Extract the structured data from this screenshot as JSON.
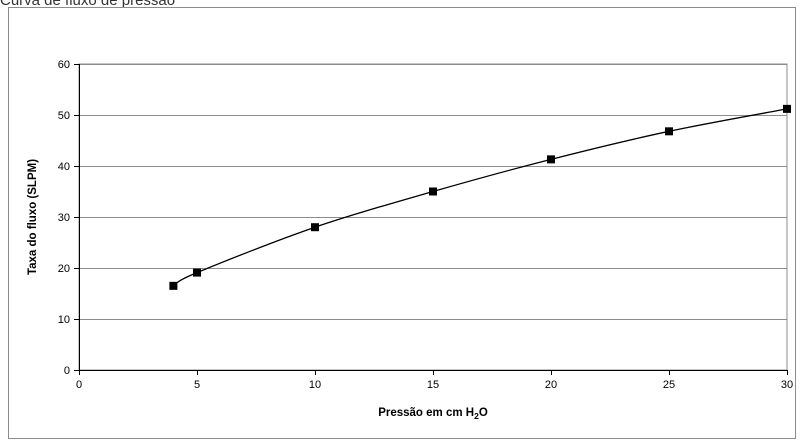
{
  "chart_data": {
    "type": "line",
    "title": "Curva de fluxo de pressão",
    "xlabel": "Pressão em cm H",
    "xlabel_sub": "2",
    "xlabel_suffix": "O",
    "ylabel": "Taxa do fluxo (SLPM)",
    "xlim": [
      0,
      30
    ],
    "ylim": [
      0,
      60
    ],
    "x_ticks": [
      0,
      5,
      10,
      15,
      20,
      25,
      30
    ],
    "y_ticks": [
      0,
      10,
      20,
      30,
      40,
      50,
      60
    ],
    "grid": "horizontal",
    "legend": "none",
    "series": [
      {
        "marker": "square",
        "color": "#000000",
        "x": [
          4,
          5,
          10,
          15,
          20,
          25,
          30
        ],
        "y": [
          16.5,
          19.1,
          28.0,
          35.0,
          41.3,
          46.8,
          51.2
        ]
      }
    ]
  }
}
